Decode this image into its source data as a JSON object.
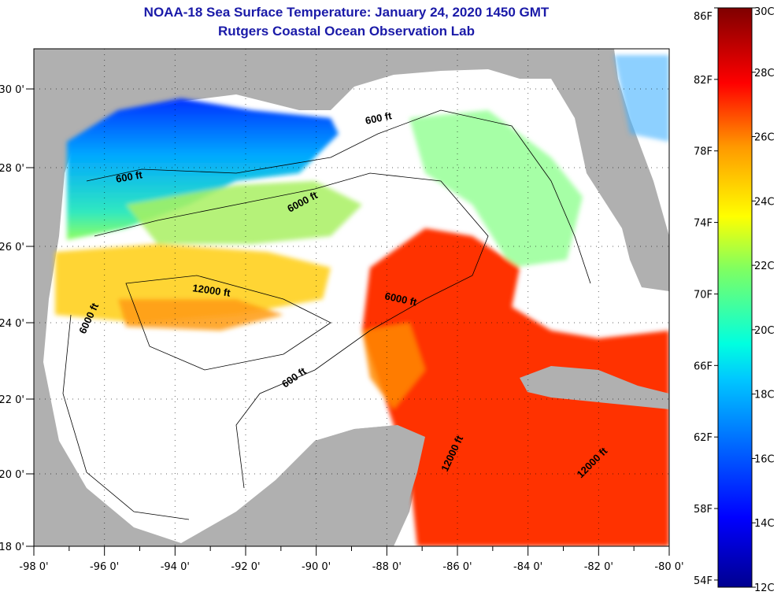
{
  "title": {
    "line1": "NOAA-18 Sea Surface Temperature:  January 24, 2020 1450 GMT",
    "line2": "Rutgers Coastal Ocean Observation Lab"
  },
  "map": {
    "lon_labels": [
      "-98 0'",
      "-96 0'",
      "-94 0'",
      "-92 0'",
      "-90 0'",
      "-88 0'",
      "-86 0'",
      "-84 0'",
      "-82 0'",
      "-80 0'"
    ],
    "lat_labels": [
      "30 0'",
      "28 0'",
      "26 0'",
      "24 0'",
      "22 0'",
      "20 0'",
      "18 0'"
    ],
    "contour_labels": [
      "600 ft",
      "600 ft",
      "6000 ft",
      "12000 ft",
      "6000 ft",
      "6000 ft",
      "600 ft",
      "12000 ft",
      "12000 ft"
    ],
    "colors": {
      "land": "#b0b0b0",
      "ocean_cloud": "#ffffff",
      "title": "#1a1aa8"
    }
  },
  "colorbar": {
    "f_labels": [
      "86F",
      "82F",
      "78F",
      "74F",
      "70F",
      "66F",
      "62F",
      "58F",
      "54F"
    ],
    "c_labels": [
      "30C",
      "28C",
      "26C",
      "24C",
      "22C",
      "20C",
      "18C",
      "16C",
      "14C",
      "12C"
    ],
    "range_c": [
      12,
      30
    ]
  }
}
